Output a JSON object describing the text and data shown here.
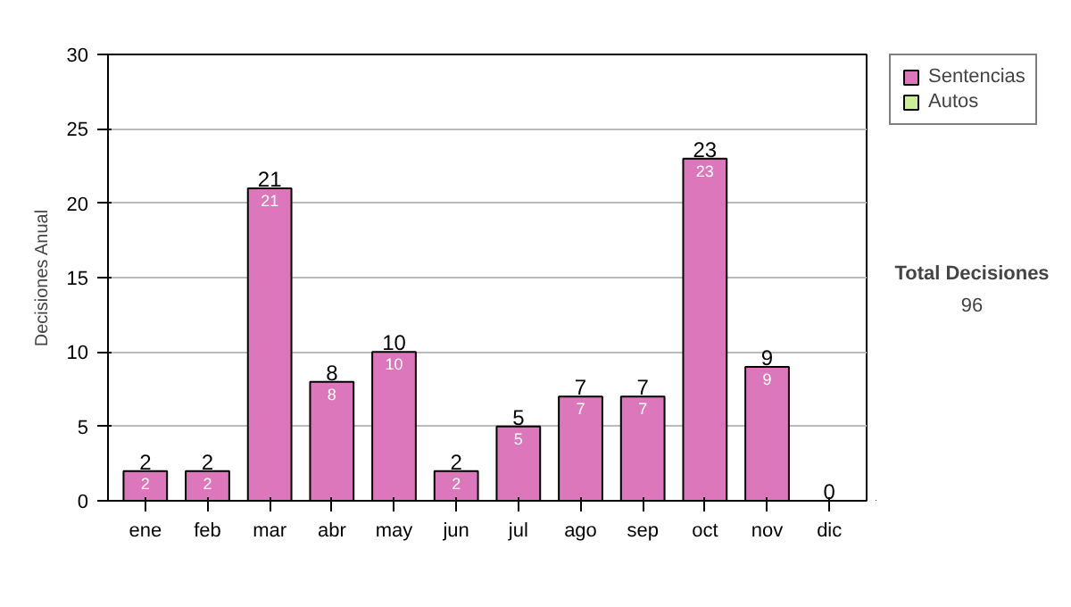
{
  "chart_data": {
    "type": "bar",
    "ylabel": "Decisiones Anual",
    "categories": [
      "ene",
      "feb",
      "mar",
      "abr",
      "may",
      "jun",
      "jul",
      "ago",
      "sep",
      "oct",
      "nov",
      "dic"
    ],
    "stacked": true,
    "series": [
      {
        "name": "Sentencias",
        "color": "#dd77bb",
        "values": [
          2,
          2,
          21,
          8,
          10,
          2,
          5,
          7,
          7,
          23,
          9,
          0
        ],
        "value_labels": [
          "2",
          "2",
          "21",
          "8",
          "10",
          "2",
          "5",
          "7",
          "7",
          "23",
          "9",
          null
        ]
      },
      {
        "name": "Autos",
        "color": "#ccee99",
        "values": [
          0,
          0,
          0,
          0,
          0,
          0,
          0,
          0,
          0,
          0,
          0,
          0
        ]
      }
    ],
    "totals": [
      "2",
      "2",
      "21",
      "8",
      "10",
      "2",
      "5",
      "7",
      "7",
      "23",
      "9",
      "0"
    ],
    "ylim": [
      0,
      30
    ],
    "yticks": [
      0,
      5,
      10,
      15,
      20,
      25,
      30
    ],
    "grid": "y",
    "legend": "right",
    "annotations": [
      "Total Decisiones",
      "96"
    ]
  }
}
